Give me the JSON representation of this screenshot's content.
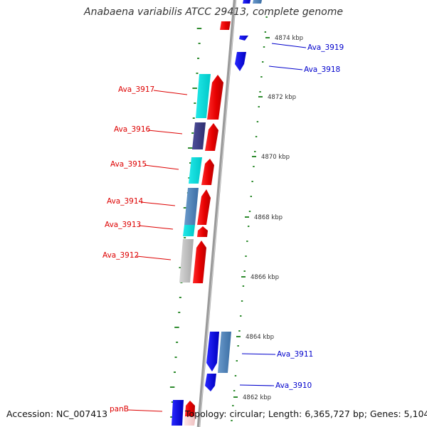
{
  "title": "Anabaena variabilis ATCC 29413, complete genome",
  "accession": "Accession: NC_007413",
  "topology": "Topology: circular; Length: 6,365,727 bp; Genes: 5,104",
  "colors": {
    "backbone": "#9a9a9a",
    "tick": "#2e8b2e",
    "left_label": "#dd0000",
    "right_label": "#0000cc",
    "ruler_text": "#333333"
  },
  "ruler": [
    "4874 kbp",
    "4872 kbp",
    "4870 kbp",
    "4868 kbp",
    "4866 kbp",
    "4864 kbp",
    "4862 kbp"
  ],
  "left_genes": [
    "Ava_3917",
    "Ava_3916",
    "Ava_3915",
    "Ava_3914",
    "Ava_3913",
    "Ava_3912",
    "panB"
  ],
  "right_genes": [
    "Ava_3919",
    "Ava_3918",
    "Ava_3911",
    "Ava_3910"
  ]
}
